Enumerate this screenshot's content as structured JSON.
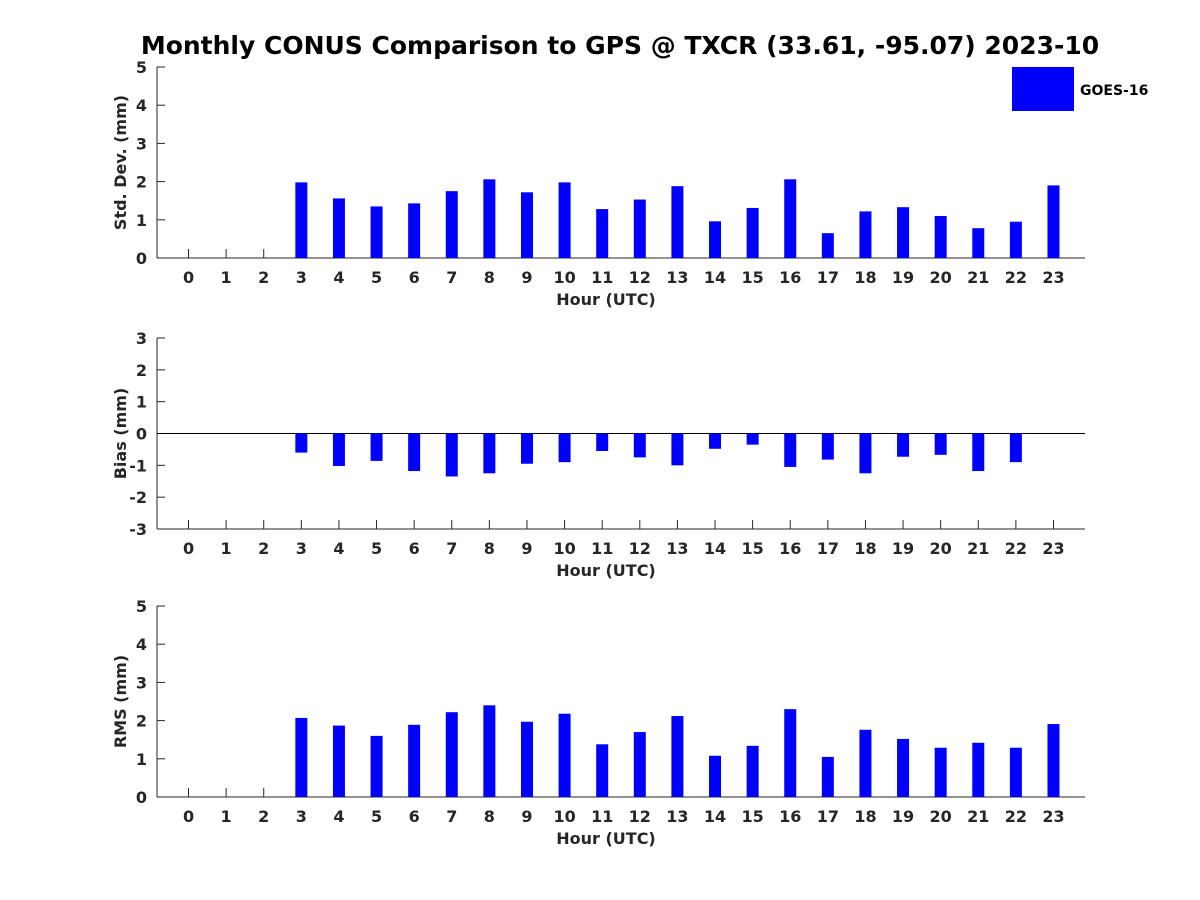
{
  "chart_data": {
    "title": "Monthly CONUS Comparison to GPS @ TXCR (33.61, -95.07) 2023-10",
    "colors": {
      "bar": "#0000ff",
      "axis": "#262626",
      "zero_line": "#000000"
    },
    "legend": {
      "entries": [
        "GOES-16"
      ],
      "placement": "top-right"
    },
    "charts": [
      {
        "type": "bar",
        "xlabel": "Hour (UTC)",
        "ylabel": "Std. Dev. (mm)",
        "ylim": [
          0,
          5
        ],
        "yticks": [
          0,
          1,
          2,
          3,
          4,
          5
        ],
        "categories": [
          "0",
          "1",
          "2",
          "3",
          "4",
          "5",
          "6",
          "7",
          "8",
          "9",
          "10",
          "11",
          "12",
          "13",
          "14",
          "15",
          "16",
          "17",
          "18",
          "19",
          "20",
          "21",
          "22",
          "23"
        ],
        "series": [
          {
            "name": "GOES-16",
            "values": [
              null,
              null,
              null,
              1.98,
              1.56,
              1.35,
              1.43,
              1.75,
              2.06,
              1.72,
              1.98,
              1.28,
              1.53,
              1.88,
              0.96,
              1.31,
              2.06,
              0.65,
              1.22,
              1.33,
              1.1,
              0.78,
              0.95,
              1.9
            ]
          }
        ],
        "grid": false
      },
      {
        "type": "bar",
        "xlabel": "Hour (UTC)",
        "ylabel": "Bias (mm)",
        "ylim": [
          -3,
          3
        ],
        "yticks": [
          -3,
          -2,
          -1,
          0,
          1,
          2,
          3
        ],
        "categories": [
          "0",
          "1",
          "2",
          "3",
          "4",
          "5",
          "6",
          "7",
          "8",
          "9",
          "10",
          "11",
          "12",
          "13",
          "14",
          "15",
          "16",
          "17",
          "18",
          "19",
          "20",
          "21",
          "22",
          "23"
        ],
        "series": [
          {
            "name": "GOES-16",
            "values": [
              null,
              null,
              null,
              -0.6,
              -1.02,
              -0.86,
              -1.18,
              -1.35,
              -1.25,
              -0.95,
              -0.9,
              -0.55,
              -0.75,
              -1.0,
              -0.48,
              -0.35,
              -1.05,
              -0.82,
              -1.25,
              -0.73,
              -0.67,
              -1.18,
              -0.9,
              0.0
            ]
          }
        ],
        "grid": false
      },
      {
        "type": "bar",
        "xlabel": "Hour (UTC)",
        "ylabel": "RMS (mm)",
        "ylim": [
          0,
          5
        ],
        "yticks": [
          0,
          1,
          2,
          3,
          4,
          5
        ],
        "categories": [
          "0",
          "1",
          "2",
          "3",
          "4",
          "5",
          "6",
          "7",
          "8",
          "9",
          "10",
          "11",
          "12",
          "13",
          "14",
          "15",
          "16",
          "17",
          "18",
          "19",
          "20",
          "21",
          "22",
          "23"
        ],
        "series": [
          {
            "name": "GOES-16",
            "values": [
              null,
              null,
              null,
              2.07,
              1.87,
              1.6,
              1.89,
              2.22,
              2.4,
              1.97,
              2.18,
              1.38,
              1.7,
              2.12,
              1.08,
              1.34,
              2.3,
              1.05,
              1.76,
              1.52,
              1.29,
              1.42,
              1.29,
              1.91
            ]
          }
        ],
        "grid": false
      }
    ]
  }
}
